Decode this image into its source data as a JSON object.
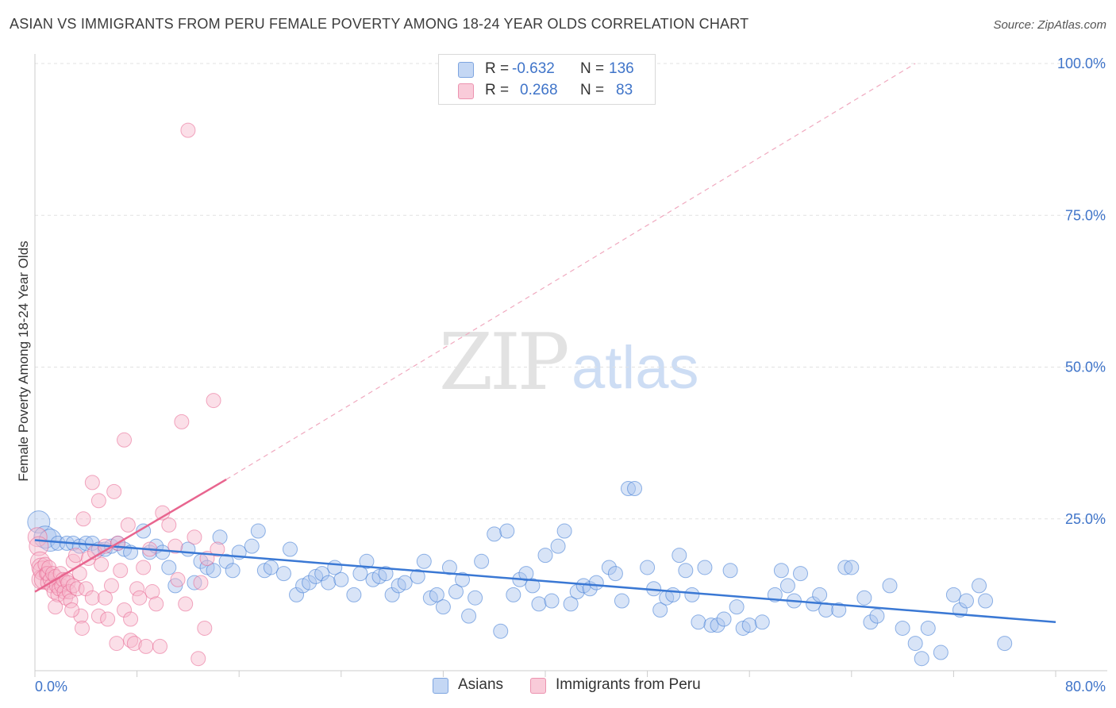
{
  "header": {
    "title": "ASIAN VS IMMIGRANTS FROM PERU FEMALE POVERTY AMONG 18-24 YEAR OLDS CORRELATION CHART",
    "source": "Source: ZipAtlas.com"
  },
  "watermark": {
    "zip": "ZIP",
    "atlas": "atlas"
  },
  "legend": {
    "rows": [
      {
        "swatch_color": "#a9c4ee",
        "r_label": "R =",
        "r_value": "-0.632",
        "n_label": "N =",
        "n_value": "136"
      },
      {
        "swatch_color": "#f7b8cb",
        "r_label": "R =",
        "r_value": "0.268",
        "n_label": "N =",
        "n_value": "83"
      }
    ]
  },
  "bottom_legend": {
    "items": [
      {
        "label": "Asians",
        "color": "#a9c4ee"
      },
      {
        "label": "Immigrants from Peru",
        "color": "#f7b8cb"
      }
    ]
  },
  "chart_data": {
    "type": "scatter",
    "ylabel": "Female Poverty Among 18-24 Year Olds",
    "xlim": [
      0,
      80
    ],
    "ylim": [
      0,
      100
    ],
    "x_tick_labels": [
      "0.0%",
      "80.0%"
    ],
    "y_tick_labels": [
      "25.0%",
      "50.0%",
      "75.0%",
      "100.0%"
    ],
    "y_ticks": [
      25,
      50,
      75,
      100
    ],
    "grid": true,
    "colors": {
      "asians": "#3a78d4",
      "peru": "#e8658f",
      "tick_label": "#3f74c9"
    },
    "series": [
      {
        "name": "Asians",
        "color": "#3a78d4",
        "fill": "#a9c4ee",
        "trend": {
          "x": [
            0,
            80
          ],
          "y": [
            21.5,
            8.0
          ]
        },
        "points": [
          [
            0.3,
            24.5
          ],
          [
            0.8,
            22
          ],
          [
            1.2,
            21.5
          ],
          [
            1.8,
            21
          ],
          [
            2.5,
            21
          ],
          [
            3,
            21
          ],
          [
            3.5,
            20.5
          ],
          [
            4,
            21
          ],
          [
            4.5,
            21
          ],
          [
            5,
            20
          ],
          [
            5.5,
            20
          ],
          [
            6,
            20.5
          ],
          [
            6.5,
            21
          ],
          [
            7,
            20
          ],
          [
            7.5,
            19.5
          ],
          [
            8.5,
            23
          ],
          [
            9,
            19.5
          ],
          [
            9.5,
            20.5
          ],
          [
            10,
            19.5
          ],
          [
            10.5,
            17
          ],
          [
            11,
            14
          ],
          [
            12,
            20
          ],
          [
            12.5,
            14.5
          ],
          [
            13,
            18
          ],
          [
            13.5,
            17
          ],
          [
            14,
            16.5
          ],
          [
            14.5,
            22
          ],
          [
            15,
            18
          ],
          [
            15.5,
            16.5
          ],
          [
            16,
            19.5
          ],
          [
            17,
            20.5
          ],
          [
            17.5,
            23
          ],
          [
            18,
            16.5
          ],
          [
            18.5,
            17
          ],
          [
            19.5,
            16
          ],
          [
            20,
            20
          ],
          [
            20.5,
            12.5
          ],
          [
            21,
            14
          ],
          [
            21.5,
            14.5
          ],
          [
            22,
            15.5
          ],
          [
            22.5,
            16
          ],
          [
            23,
            14.5
          ],
          [
            23.5,
            17
          ],
          [
            24,
            15
          ],
          [
            25,
            12.5
          ],
          [
            25.5,
            16
          ],
          [
            26,
            18
          ],
          [
            26.5,
            15
          ],
          [
            27,
            15.5
          ],
          [
            27.5,
            16
          ],
          [
            28,
            12.5
          ],
          [
            28.5,
            14
          ],
          [
            29,
            14.5
          ],
          [
            30,
            15.5
          ],
          [
            30.5,
            18
          ],
          [
            31,
            12
          ],
          [
            31.5,
            12.5
          ],
          [
            32,
            10.5
          ],
          [
            32.5,
            17
          ],
          [
            33,
            13
          ],
          [
            33.5,
            15
          ],
          [
            34,
            9
          ],
          [
            34.5,
            12
          ],
          [
            35,
            18
          ],
          [
            36,
            22.5
          ],
          [
            36.5,
            6.5
          ],
          [
            37,
            23
          ],
          [
            37.5,
            12.5
          ],
          [
            38,
            15
          ],
          [
            38.5,
            16
          ],
          [
            39,
            14
          ],
          [
            39.5,
            11
          ],
          [
            40,
            19
          ],
          [
            40.5,
            11.5
          ],
          [
            41,
            20.5
          ],
          [
            41.5,
            23
          ],
          [
            42,
            11
          ],
          [
            42.5,
            13
          ],
          [
            43,
            14
          ],
          [
            43.5,
            13.5
          ],
          [
            44,
            14.5
          ],
          [
            45,
            17
          ],
          [
            45.5,
            16
          ],
          [
            46,
            11.5
          ],
          [
            46.5,
            30
          ],
          [
            47,
            30
          ],
          [
            48,
            17
          ],
          [
            48.5,
            13.5
          ],
          [
            49,
            10
          ],
          [
            49.5,
            12
          ],
          [
            50,
            12.5
          ],
          [
            50.5,
            19
          ],
          [
            51,
            16.5
          ],
          [
            51.5,
            12.5
          ],
          [
            52,
            8
          ],
          [
            52.5,
            17
          ],
          [
            53,
            7.5
          ],
          [
            53.5,
            7.5
          ],
          [
            54,
            8.5
          ],
          [
            54.5,
            16.5
          ],
          [
            55,
            10.5
          ],
          [
            55.5,
            7
          ],
          [
            56,
            7.5
          ],
          [
            57,
            8
          ],
          [
            58,
            12.5
          ],
          [
            58.5,
            16.5
          ],
          [
            59,
            14
          ],
          [
            59.5,
            11.5
          ],
          [
            60,
            16
          ],
          [
            61,
            11
          ],
          [
            61.5,
            12.5
          ],
          [
            62,
            10
          ],
          [
            63,
            10
          ],
          [
            63.5,
            17
          ],
          [
            64,
            17
          ],
          [
            65,
            12
          ],
          [
            65.5,
            8
          ],
          [
            66,
            9
          ],
          [
            67,
            14
          ],
          [
            68,
            7
          ],
          [
            69,
            4.5
          ],
          [
            69.5,
            2
          ],
          [
            70,
            7
          ],
          [
            71,
            3
          ],
          [
            72,
            12.5
          ],
          [
            72.5,
            10
          ],
          [
            73,
            11.5
          ],
          [
            74,
            14
          ],
          [
            74.5,
            11.5
          ],
          [
            76,
            4.5
          ]
        ]
      },
      {
        "name": "Immigrants from Peru",
        "color": "#e8658f",
        "fill": "#f7b8cb",
        "trend": {
          "x": [
            0,
            15
          ],
          "y": [
            13,
            31.5
          ]
        },
        "trend_dashed": {
          "x": [
            15,
            69
          ],
          "y": [
            31.5,
            100
          ]
        },
        "points": [
          [
            0.2,
            22
          ],
          [
            0.3,
            20.5
          ],
          [
            0.4,
            18
          ],
          [
            0.5,
            17
          ],
          [
            0.5,
            15
          ],
          [
            0.6,
            16.5
          ],
          [
            0.7,
            15
          ],
          [
            0.8,
            17.5
          ],
          [
            0.9,
            16
          ],
          [
            1,
            14.5
          ],
          [
            1,
            16
          ],
          [
            1.1,
            17
          ],
          [
            1.2,
            15
          ],
          [
            1.3,
            14
          ],
          [
            1.4,
            16
          ],
          [
            1.5,
            13
          ],
          [
            1.6,
            15.5
          ],
          [
            1.7,
            14
          ],
          [
            1.8,
            12.5
          ],
          [
            1.9,
            13.5
          ],
          [
            2,
            16
          ],
          [
            2.1,
            14
          ],
          [
            2.2,
            15
          ],
          [
            2.3,
            13
          ],
          [
            2.4,
            12
          ],
          [
            2.5,
            15
          ],
          [
            2.6,
            14.5
          ],
          [
            2.7,
            13
          ],
          [
            2.8,
            11.5
          ],
          [
            3,
            14
          ],
          [
            3,
            18
          ],
          [
            3.2,
            19
          ],
          [
            3.3,
            13.5
          ],
          [
            3.5,
            16
          ],
          [
            3.6,
            9
          ],
          [
            3.8,
            25
          ],
          [
            4,
            13.5
          ],
          [
            4.2,
            18.5
          ],
          [
            4.5,
            12
          ],
          [
            4.5,
            31
          ],
          [
            4.7,
            19.5
          ],
          [
            5,
            28
          ],
          [
            5,
            9
          ],
          [
            5.2,
            17.5
          ],
          [
            5.5,
            20.5
          ],
          [
            5.5,
            12
          ],
          [
            5.7,
            8.5
          ],
          [
            6,
            14
          ],
          [
            6.2,
            29.5
          ],
          [
            6.5,
            21
          ],
          [
            6.7,
            16.5
          ],
          [
            7,
            10
          ],
          [
            7,
            38
          ],
          [
            7.3,
            24
          ],
          [
            7.5,
            8.5
          ],
          [
            7.5,
            5
          ],
          [
            7.8,
            4.5
          ],
          [
            8,
            13.5
          ],
          [
            8.2,
            12
          ],
          [
            8.5,
            17
          ],
          [
            8.7,
            4
          ],
          [
            9,
            20
          ],
          [
            9.2,
            13
          ],
          [
            9.5,
            11
          ],
          [
            10,
            26
          ],
          [
            10.5,
            24
          ],
          [
            11,
            20.5
          ],
          [
            11.2,
            15
          ],
          [
            11.5,
            41
          ],
          [
            12,
            89
          ],
          [
            12.5,
            22
          ],
          [
            12.8,
            2
          ],
          [
            13,
            14.5
          ],
          [
            13.3,
            7
          ],
          [
            13.5,
            18.5
          ],
          [
            14,
            44.5
          ],
          [
            14.3,
            20
          ],
          [
            3.7,
            7
          ],
          [
            2.9,
            10
          ],
          [
            1.6,
            10.5
          ],
          [
            6.4,
            4.5
          ],
          [
            9.8,
            4
          ],
          [
            11.8,
            11
          ]
        ]
      }
    ]
  }
}
